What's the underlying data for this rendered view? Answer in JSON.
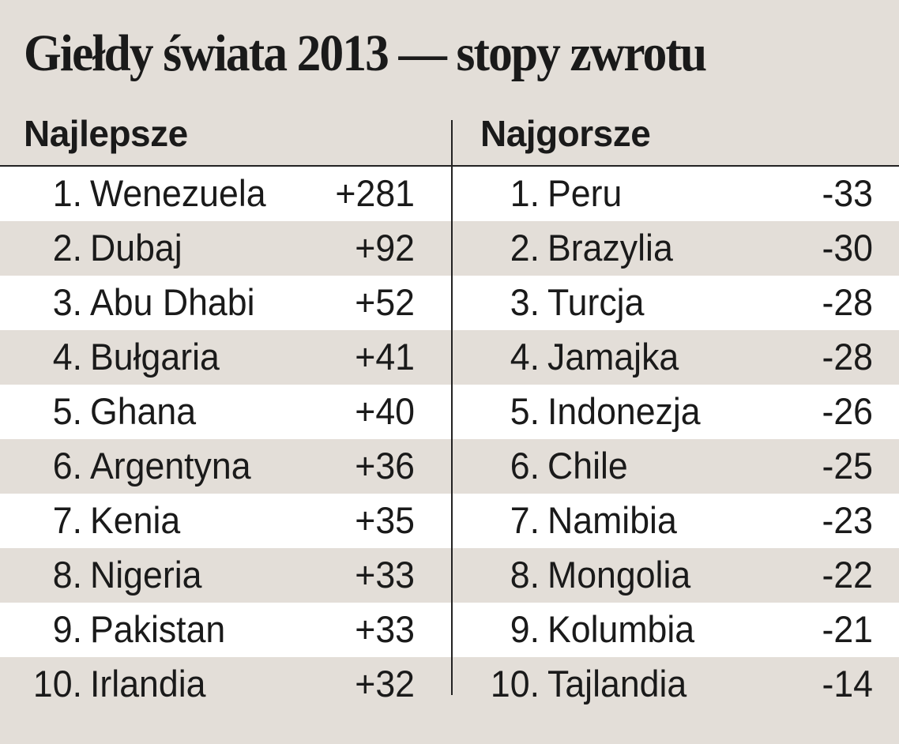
{
  "title": "Giełdy świata 2013 — stopy zwrotu",
  "chart_data": {
    "type": "table",
    "title": "Giełdy świata 2013 — stopy zwrotu",
    "tables": [
      {
        "header": "Najlepsze",
        "rows": [
          {
            "rank": "1.",
            "country": "Wenezuela",
            "value": "+281"
          },
          {
            "rank": "2.",
            "country": "Dubaj",
            "value": "+92"
          },
          {
            "rank": "3.",
            "country": "Abu Dhabi",
            "value": "+52"
          },
          {
            "rank": "4.",
            "country": "Bułgaria",
            "value": "+41"
          },
          {
            "rank": "5.",
            "country": "Ghana",
            "value": "+40"
          },
          {
            "rank": "6.",
            "country": "Argentyna",
            "value": "+36"
          },
          {
            "rank": "7.",
            "country": "Kenia",
            "value": "+35"
          },
          {
            "rank": "8.",
            "country": "Nigeria",
            "value": "+33"
          },
          {
            "rank": "9.",
            "country": "Pakistan",
            "value": "+33"
          },
          {
            "rank": "10.",
            "country": "Irlandia",
            "value": "+32"
          }
        ]
      },
      {
        "header": "Najgorsze",
        "rows": [
          {
            "rank": "1.",
            "country": "Peru",
            "value": "-33"
          },
          {
            "rank": "2.",
            "country": "Brazylia",
            "value": "-30"
          },
          {
            "rank": "3.",
            "country": "Turcja",
            "value": "-28"
          },
          {
            "rank": "4.",
            "country": "Jamajka",
            "value": "-28"
          },
          {
            "rank": "5.",
            "country": "Indonezja",
            "value": "-26"
          },
          {
            "rank": "6.",
            "country": "Chile",
            "value": "-25"
          },
          {
            "rank": "7.",
            "country": "Namibia",
            "value": "-23"
          },
          {
            "rank": "8.",
            "country": "Mongolia",
            "value": "-22"
          },
          {
            "rank": "9.",
            "country": "Kolumbia",
            "value": "-21"
          },
          {
            "rank": "10.",
            "country": "Tajlandia",
            "value": "-14"
          }
        ]
      }
    ]
  },
  "colors": {
    "background": "#e3ded8",
    "row_light": "#ffffff",
    "text": "#1a1a1a"
  }
}
